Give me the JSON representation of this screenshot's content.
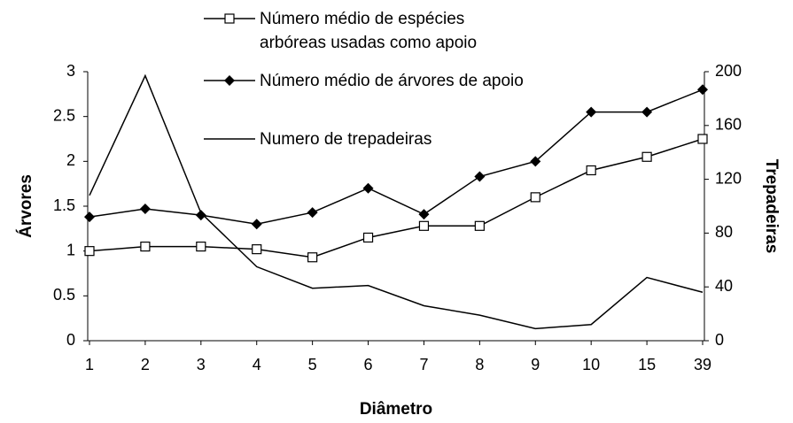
{
  "chart_data": {
    "type": "line",
    "x_label": "Diâmetro",
    "y_label": "Árvores",
    "y2_label": "Trepadeiras",
    "categories": [
      "1",
      "2",
      "3",
      "4",
      "5",
      "6",
      "7",
      "8",
      "9",
      "10",
      "15",
      "39"
    ],
    "ylim": [
      0,
      3
    ],
    "yticks": [
      0,
      0.5,
      1,
      1.5,
      2,
      2.5,
      3
    ],
    "y2lim": [
      0,
      200
    ],
    "y2ticks": [
      0,
      40,
      80,
      120,
      160,
      200
    ],
    "series": [
      {
        "name": "Número médio de espécies arbóreas usadas como apoio",
        "color": "#000000",
        "marker": "square",
        "values": [
          1.0,
          1.05,
          1.05,
          1.02,
          0.93,
          1.15,
          1.28,
          1.28,
          1.6,
          1.9,
          2.05,
          2.25
        ]
      },
      {
        "name": "Número médio de árvores de apoio",
        "color": "#000000",
        "marker": "diamond",
        "values": [
          1.38,
          1.47,
          1.4,
          1.3,
          1.43,
          1.7,
          1.41,
          1.83,
          2.0,
          2.55,
          2.55,
          2.8
        ]
      },
      {
        "name": "Numero de trepadeiras",
        "color": "#000000",
        "marker": "none",
        "axis": "y2",
        "values": [
          108,
          197,
          95,
          55,
          39,
          41,
          26,
          19,
          9,
          12,
          47,
          36
        ]
      }
    ]
  }
}
